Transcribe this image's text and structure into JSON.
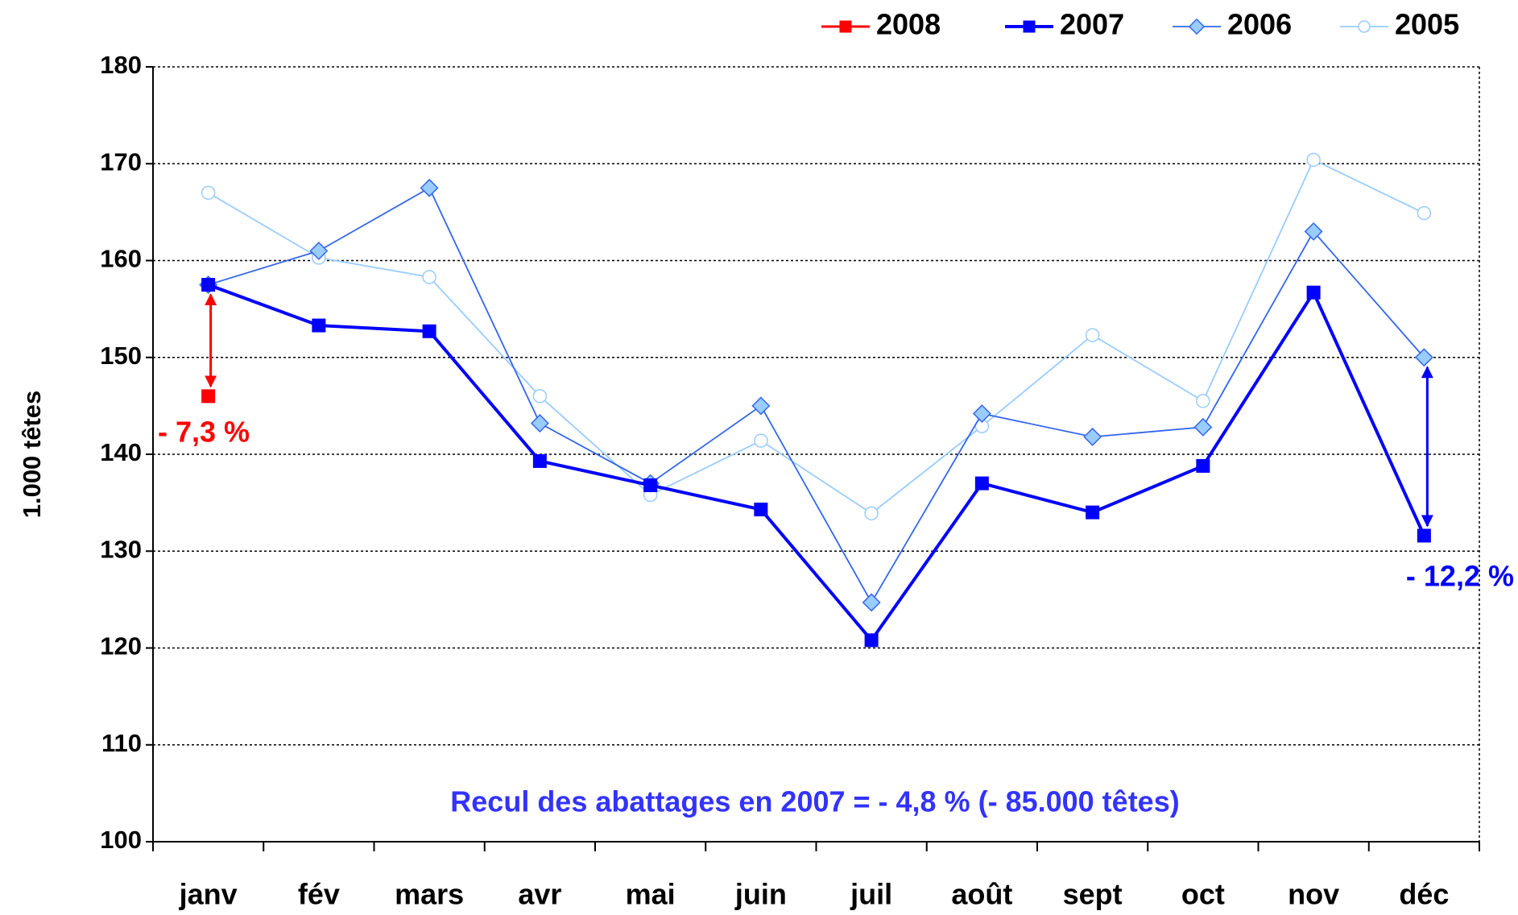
{
  "chart_data": {
    "type": "line",
    "y_axis_label": "1.000 têtes",
    "categories": [
      "janv",
      "fév",
      "mars",
      "avr",
      "mai",
      "juin",
      "juil",
      "août",
      "sept",
      "oct",
      "nov",
      "déc"
    ],
    "series": [
      {
        "name": "2008",
        "color": "#ff0000",
        "marker": "square",
        "values": [
          146,
          null,
          null,
          null,
          null,
          null,
          null,
          null,
          null,
          null,
          null,
          null
        ]
      },
      {
        "name": "2007",
        "color": "#0000ff",
        "marker": "square",
        "values": [
          157.5,
          153.3,
          152.7,
          139.3,
          136.8,
          134.3,
          120.8,
          137,
          134,
          138.8,
          156.7,
          131.6
        ]
      },
      {
        "name": "2006",
        "color": "#3366ee",
        "marker": "diamond",
        "values": [
          157.5,
          161,
          167.5,
          143.2,
          137,
          145,
          124.7,
          144.2,
          141.8,
          142.8,
          163,
          150
        ]
      },
      {
        "name": "2005",
        "color": "#99ccff",
        "marker": "circle",
        "values": [
          167,
          160.3,
          158.3,
          146,
          135.8,
          141.4,
          133.9,
          142.9,
          152.3,
          145.5,
          170.4,
          164.9
        ]
      }
    ],
    "ylim": [
      100,
      180
    ],
    "yticks": [
      100,
      110,
      120,
      130,
      140,
      150,
      160,
      170,
      180
    ],
    "grid": true,
    "legend": "top-right",
    "annotations": [
      "- 7,3 %",
      "- 12,2 %",
      "Recul des abattages en 2007 = - 4,8 % (- 85.000 têtes)"
    ]
  }
}
